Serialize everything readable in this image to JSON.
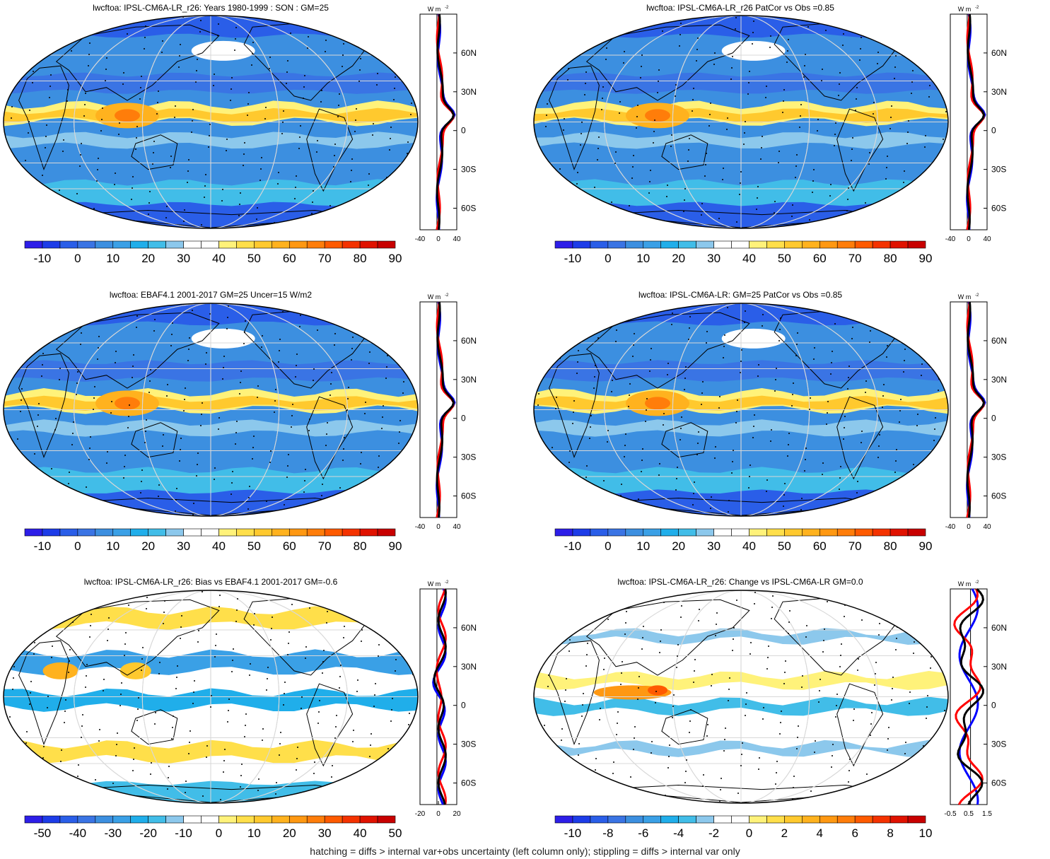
{
  "footer": "hatching = diffs > internal var+obs uncertainty (left column only); stippling = diffs > internal var only",
  "profile_unit": "W m",
  "profile_unit_sup": "-2",
  "lat_ticks": [
    "60N",
    "30N",
    "0",
    "30S",
    "60S"
  ],
  "colors": {
    "ocean_blue": "#3c8fe0",
    "land_line": "#000000",
    "model_line": "#ff0000",
    "obs_line": "#0000ff",
    "mean_line": "#000000"
  },
  "palette": [
    "#2d1ee8",
    "#1d3ce8",
    "#2a5ee8",
    "#3a74e4",
    "#3c8fe0",
    "#3aa0e6",
    "#20aeea",
    "#41bde8",
    "#8cc8ec",
    "#ffffff",
    "#ffffff",
    "#fff27a",
    "#ffdf4a",
    "#ffc92e",
    "#ffb21e",
    "#ff9812",
    "#ff7d0a",
    "#ff5a00",
    "#f43200",
    "#e01200",
    "#c80000"
  ],
  "panels": [
    {
      "title": "lwcftoa: IPSL-CM6A-LR_r26: Years 1980-1999 : SON : GM=25",
      "colorbar": [
        "-10",
        "0",
        "10",
        "20",
        "30",
        "40",
        "50",
        "60",
        "70",
        "80",
        "90"
      ],
      "profile_ticks": [
        "-40",
        "0",
        "40"
      ],
      "field": "mean"
    },
    {
      "title": "lwcftoa: IPSL-CM6A-LR_r26 PatCor vs Obs =0.85",
      "colorbar": [
        "-10",
        "0",
        "10",
        "20",
        "30",
        "40",
        "50",
        "60",
        "70",
        "80",
        "90"
      ],
      "profile_ticks": [
        "-40",
        "0",
        "40"
      ],
      "field": "mean"
    },
    {
      "title": "lwcftoa: EBAF4.1 2001-2017 GM=25 Uncer=15 W/m2",
      "colorbar": [
        "-10",
        "0",
        "10",
        "20",
        "30",
        "40",
        "50",
        "60",
        "70",
        "80",
        "90"
      ],
      "profile_ticks": [
        "-40",
        "0",
        "40"
      ],
      "field": "mean"
    },
    {
      "title": "lwcftoa: IPSL-CM6A-LR: GM=25 PatCor vs Obs =0.85",
      "colorbar": [
        "-10",
        "0",
        "10",
        "20",
        "30",
        "40",
        "50",
        "60",
        "70",
        "80",
        "90"
      ],
      "profile_ticks": [
        "-40",
        "0",
        "40"
      ],
      "field": "mean"
    },
    {
      "title": "lwcftoa: IPSL-CM6A-LR_r26: Bias vs EBAF4.1 2001-2017  GM=-0.6",
      "colorbar": [
        "-50",
        "-40",
        "-30",
        "-20",
        "-10",
        "0",
        "10",
        "20",
        "30",
        "40",
        "50"
      ],
      "profile_ticks": [
        "-20",
        "0",
        "20"
      ],
      "field": "bias"
    },
    {
      "title": "lwcftoa: IPSL-CM6A-LR_r26: Change vs IPSL-CM6A-LR GM=0.0",
      "colorbar": [
        "-10",
        "-8",
        "-6",
        "-4",
        "-2",
        "0",
        "2",
        "4",
        "6",
        "8",
        "10"
      ],
      "profile_ticks": [
        "-0.5",
        "0.5",
        "1.5"
      ],
      "field": "change"
    }
  ]
}
